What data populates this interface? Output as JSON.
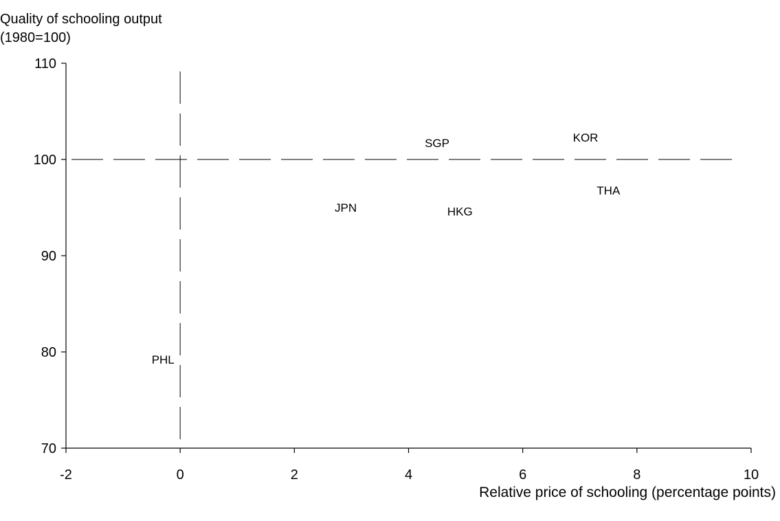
{
  "chart_data": {
    "type": "scatter",
    "title": "",
    "ylabel_lines": [
      "Quality of schooling output",
      "(1980=100)"
    ],
    "xlabel": "Relative price of schooling (percentage points)",
    "xlim": [
      -2,
      10
    ],
    "ylim": [
      70,
      110
    ],
    "xticks": [
      -2,
      0,
      2,
      4,
      6,
      8,
      10
    ],
    "yticks": [
      70,
      80,
      90,
      100,
      110
    ],
    "grid": false,
    "reference_lines": {
      "horizontal_dashed_y": 100,
      "vertical_dashed_x": 0
    },
    "points": [
      {
        "label": "SGP",
        "x": 4.5,
        "y": 101.7
      },
      {
        "label": "KOR",
        "x": 7.1,
        "y": 102.3
      },
      {
        "label": "THA",
        "x": 7.5,
        "y": 96.8
      },
      {
        "label": "JPN",
        "x": 2.9,
        "y": 95.0
      },
      {
        "label": "HKG",
        "x": 4.9,
        "y": 94.6
      },
      {
        "label": "PHL",
        "x": -0.3,
        "y": 79.2
      }
    ]
  }
}
